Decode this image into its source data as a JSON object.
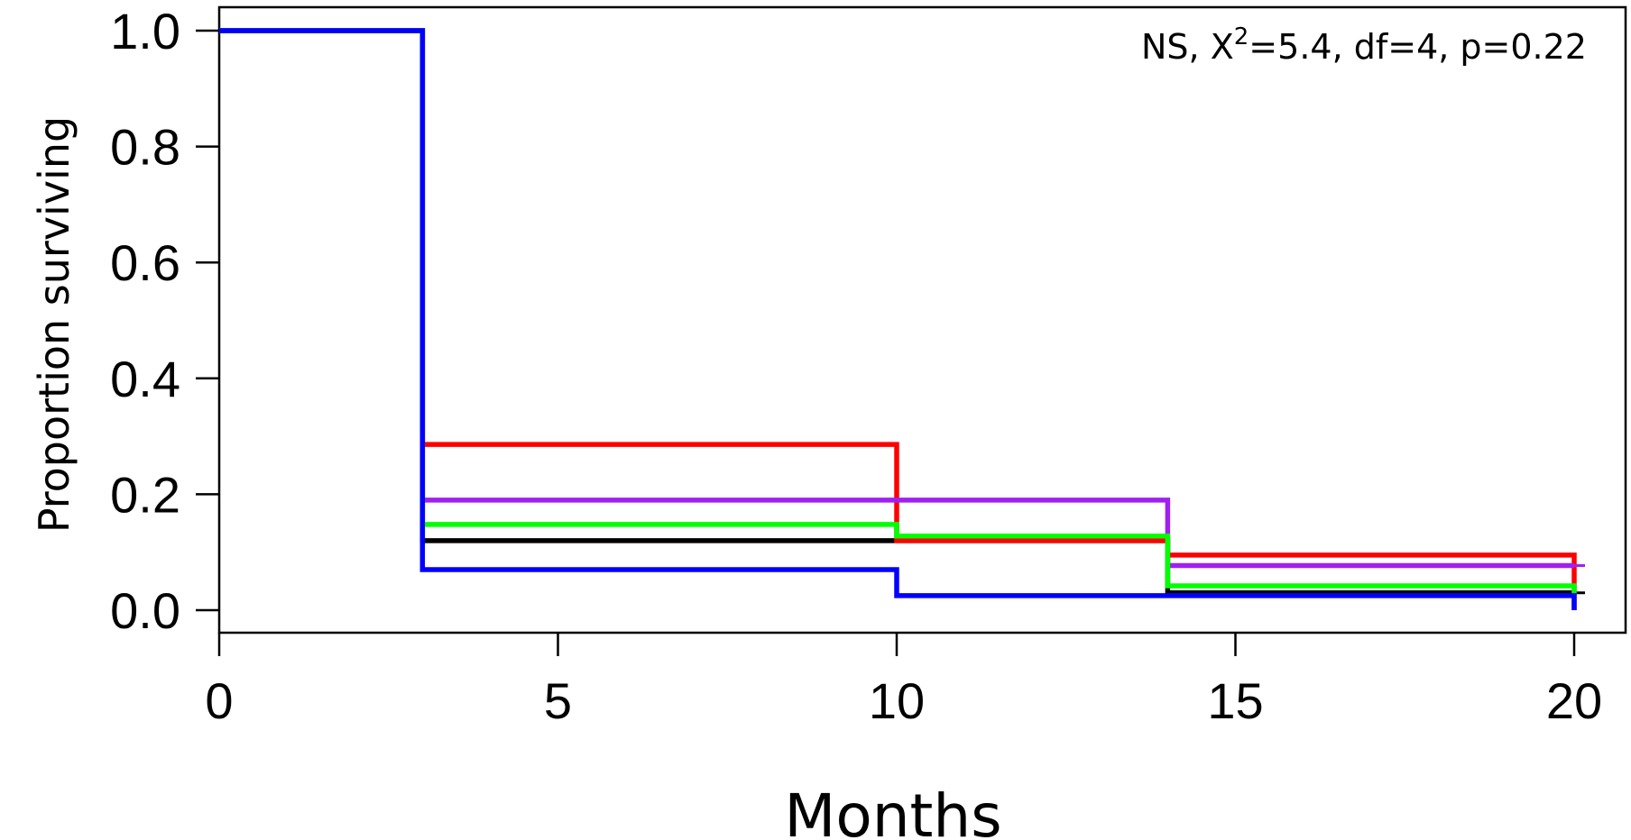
{
  "chart_data": {
    "type": "line",
    "step": true,
    "xlabel": "Months",
    "ylabel": "Proportion surviving",
    "annotation": {
      "prefix": "NS, X",
      "superscript": "2",
      "suffix": "=5.4, df=4, p=0.22"
    },
    "xlim": [
      0,
      20
    ],
    "ylim": [
      0,
      1
    ],
    "xticks": [
      0,
      5,
      10,
      15,
      20
    ],
    "xtick_labels": [
      "0",
      "5",
      "10",
      "15",
      "20"
    ],
    "yticks": [
      0,
      0.2,
      0.4,
      0.6,
      0.8,
      1.0
    ],
    "ytick_labels": [
      "0.0",
      "0.2",
      "0.4",
      "0.6",
      "0.8",
      "1.0"
    ],
    "grid": false,
    "series": [
      {
        "color": "#000000",
        "x": [
          0,
          3,
          10,
          14,
          20
        ],
        "y": [
          1.0,
          0.12,
          0.12,
          0.03,
          0.03
        ],
        "censor_x": [
          20
        ],
        "censor_y": [
          0.03
        ]
      },
      {
        "color": "#ff0000",
        "x": [
          0,
          3,
          10,
          14,
          20
        ],
        "y": [
          1.0,
          0.286,
          0.12,
          0.095,
          0.0
        ]
      },
      {
        "color": "#a020f0",
        "x": [
          0,
          3,
          14,
          20
        ],
        "y": [
          1.0,
          0.19,
          0.077,
          0.077
        ],
        "censor_x": [
          20
        ],
        "censor_y": [
          0.077
        ]
      },
      {
        "color": "#00ff00",
        "x": [
          0,
          3,
          10,
          14,
          20
        ],
        "y": [
          1.0,
          0.148,
          0.128,
          0.042,
          0.025
        ]
      },
      {
        "color": "#0000ff",
        "x": [
          0,
          3,
          10,
          20
        ],
        "y": [
          1.0,
          0.07,
          0.025,
          0.0
        ]
      }
    ]
  }
}
